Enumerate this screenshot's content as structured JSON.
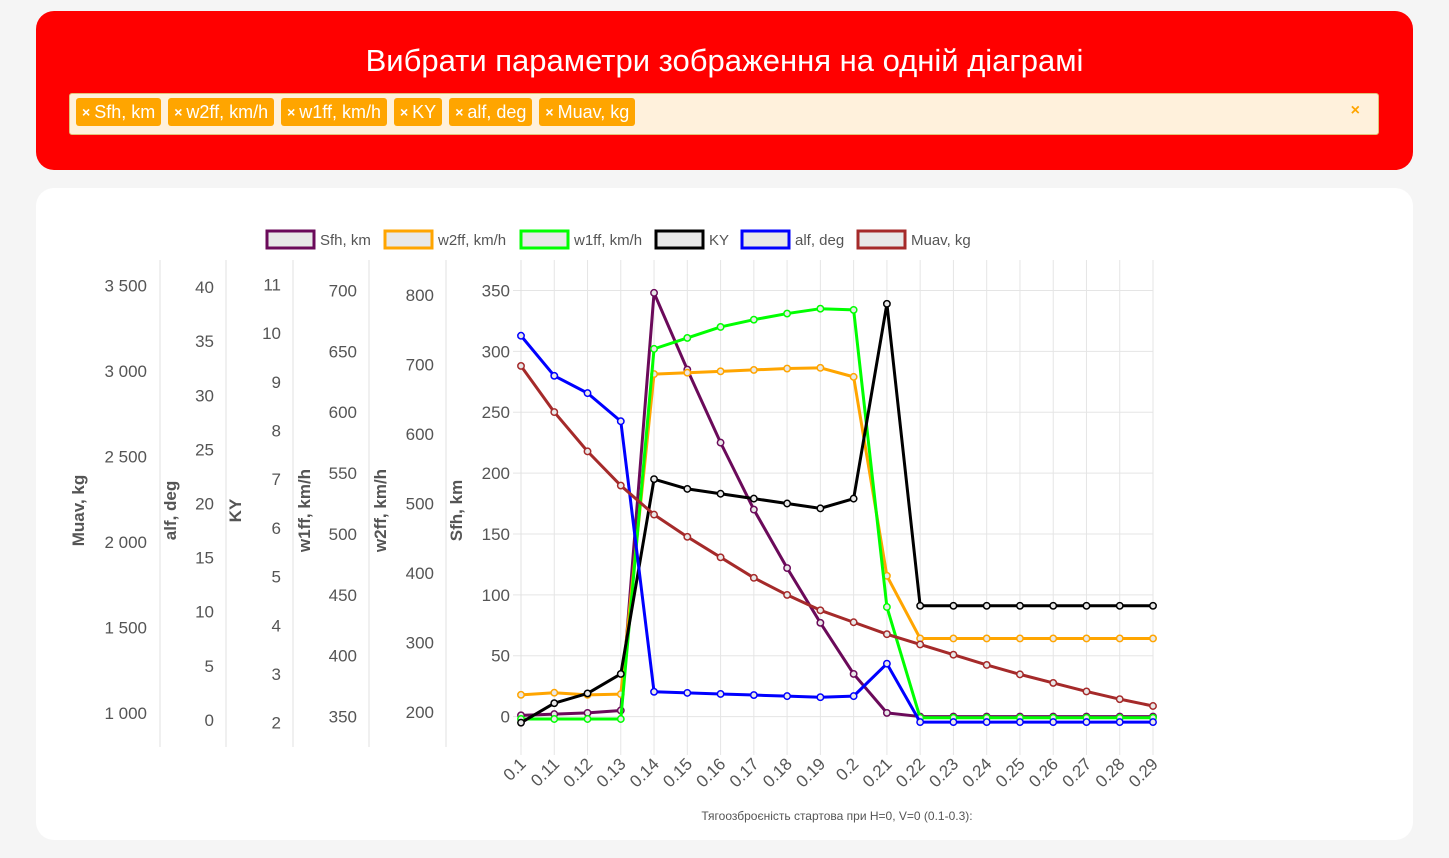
{
  "header": {
    "title": "Вибрати параметри зображення на одній діаграмі",
    "selected": [
      "Sfh, km",
      "w2ff, km/h",
      "w1ff, km/h",
      "KY",
      "alf, deg",
      "Muav, kg"
    ],
    "clear_symbol": "×",
    "remove_symbol": "×"
  },
  "colors": {
    "header_bg": "#ff0000",
    "tag_bg": "#ffa500",
    "select_bg": "#fff1dc"
  },
  "chart_data": {
    "type": "line",
    "xlabel": "Тягоозброєність стартова при H=0, V=0 (0.1-0.3):",
    "categories": [
      "0.1",
      "0.11",
      "0.12",
      "0.13",
      "0.14",
      "0.15",
      "0.16",
      "0.17",
      "0.18",
      "0.19",
      "0.2",
      "0.21",
      "0.22",
      "0.23",
      "0.24",
      "0.25",
      "0.26",
      "0.27",
      "0.28",
      "0.29"
    ],
    "legend_position": "top",
    "grid": true,
    "axes": [
      {
        "id": "Muav",
        "label": "Muav, kg",
        "min": 800,
        "max": 3650,
        "ticks": [
          1000,
          1500,
          2000,
          2500,
          3000,
          3500
        ],
        "tick_labels": [
          "1 000",
          "1 500",
          "2 000",
          "2 500",
          "3 000",
          "3 500"
        ]
      },
      {
        "id": "alf",
        "label": "alf, deg",
        "min": -2.5,
        "max": 42.5,
        "ticks": [
          0,
          5,
          10,
          15,
          20,
          25,
          30,
          35,
          40
        ],
        "tick_labels": [
          "0",
          "5",
          "10",
          "15",
          "20",
          "25",
          "30",
          "35",
          "40"
        ]
      },
      {
        "id": "KY",
        "label": "KY",
        "min": 1.5,
        "max": 11.5,
        "ticks": [
          2,
          3,
          4,
          5,
          6,
          7,
          8,
          9,
          10,
          11
        ],
        "tick_labels": [
          "2",
          "3",
          "4",
          "5",
          "6",
          "7",
          "8",
          "9",
          "10",
          "11"
        ]
      },
      {
        "id": "w1ff",
        "label": "w1ff, km/h",
        "min": 325,
        "max": 725,
        "ticks": [
          350,
          400,
          450,
          500,
          550,
          600,
          650,
          700
        ],
        "tick_labels": [
          "350",
          "400",
          "450",
          "500",
          "550",
          "600",
          "650",
          "700"
        ]
      },
      {
        "id": "w2ff",
        "label": "w2ff, km/h",
        "min": 150,
        "max": 850,
        "ticks": [
          200,
          300,
          400,
          500,
          600,
          700,
          800
        ],
        "tick_labels": [
          "200",
          "300",
          "400",
          "500",
          "600",
          "700",
          "800"
        ]
      },
      {
        "id": "Sfh",
        "label": "Sfh, km",
        "min": -25,
        "max": 375,
        "ticks": [
          0,
          50,
          100,
          150,
          200,
          250,
          300,
          350
        ],
        "tick_labels": [
          "0",
          "50",
          "100",
          "150",
          "200",
          "250",
          "300",
          "350"
        ]
      }
    ],
    "series": [
      {
        "name": "Sfh, km",
        "axis": "Sfh",
        "color": "#6b0a5a",
        "values": [
          1,
          2,
          3,
          5,
          348,
          285,
          225,
          170,
          122,
          77,
          35,
          3,
          0,
          0,
          0,
          0,
          0,
          0,
          0,
          0
        ]
      },
      {
        "name": "w2ff, km/h",
        "axis": "w2ff",
        "color": "#ffa500",
        "values": [
          225,
          228,
          225,
          226,
          686,
          688,
          690,
          692,
          694,
          695,
          682,
          396,
          306,
          306,
          306,
          306,
          306,
          306,
          306,
          306
        ]
      },
      {
        "name": "w1ff, km/h",
        "axis": "w1ff",
        "color": "#00ff00",
        "values": [
          348,
          348,
          348,
          348,
          652,
          661,
          670,
          676,
          681,
          685,
          684,
          440,
          349,
          349,
          349,
          349,
          349,
          349,
          349,
          349
        ]
      },
      {
        "name": "KY",
        "axis": "KY",
        "color": "#000000",
        "values": [
          2.0,
          2.4,
          2.6,
          3.0,
          7.0,
          6.8,
          6.7,
          6.6,
          6.5,
          6.4,
          6.6,
          10.6,
          4.4,
          4.4,
          4.4,
          4.4,
          4.4,
          4.4,
          4.4,
          4.4
        ]
      },
      {
        "name": "alf, deg",
        "axis": "alf",
        "color": "#0000ff",
        "values": [
          35.5,
          31.8,
          30.2,
          27.6,
          2.6,
          2.5,
          2.4,
          2.3,
          2.2,
          2.1,
          2.2,
          5.2,
          -0.2,
          -0.2,
          -0.2,
          -0.2,
          -0.2,
          -0.2,
          -0.2,
          -0.2
        ]
      },
      {
        "name": "Muav, kg",
        "axis": "Muav",
        "color": "#a52a2a",
        "values": [
          3030,
          2760,
          2530,
          2330,
          2160,
          2030,
          1910,
          1790,
          1690,
          1600,
          1530,
          1460,
          1400,
          1340,
          1280,
          1225,
          1175,
          1125,
          1080,
          1040
        ]
      }
    ]
  }
}
